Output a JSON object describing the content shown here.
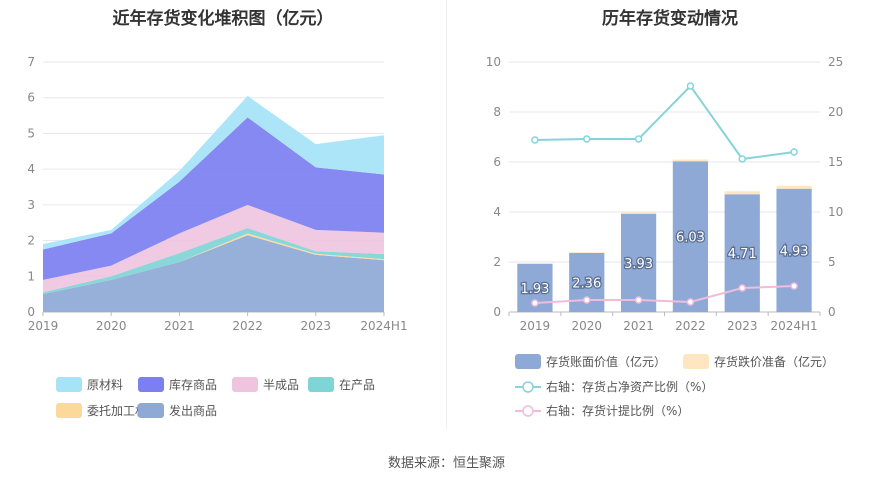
{
  "source": "数据来源：恒生聚源",
  "chart_data": [
    {
      "type": "area",
      "title": "近年存货变化堆积图（亿元）",
      "x": [
        "2019",
        "2020",
        "2021",
        "2022",
        "2023",
        "2024H1"
      ],
      "ylim": [
        0,
        7
      ],
      "yticks": [
        0,
        1,
        2,
        3,
        4,
        5,
        6,
        7
      ],
      "stacked": true,
      "grid": true,
      "legend_position": "bottom",
      "series": [
        {
          "name": "发出商品",
          "color": "#8ea9d6",
          "values": [
            0.5,
            0.9,
            1.4,
            2.15,
            1.6,
            1.45
          ]
        },
        {
          "name": "委托加工材料",
          "color": "#fcd89a",
          "values": [
            0.0,
            0.0,
            0.0,
            0.05,
            0.03,
            0.03
          ]
        },
        {
          "name": "在产品",
          "color": "#7fd4d6",
          "values": [
            0.05,
            0.1,
            0.25,
            0.15,
            0.07,
            0.14
          ]
        },
        {
          "name": "半成品",
          "color": "#efc4df",
          "values": [
            0.35,
            0.3,
            0.55,
            0.65,
            0.6,
            0.6
          ]
        },
        {
          "name": "库存商品",
          "color": "#7b7ff0",
          "values": [
            0.85,
            0.9,
            1.45,
            2.45,
            1.75,
            1.63
          ]
        },
        {
          "name": "原材料",
          "color": "#a6e3f7",
          "values": [
            0.15,
            0.1,
            0.3,
            0.6,
            0.65,
            1.1
          ]
        }
      ],
      "legend_order": [
        "原材料",
        "库存商品",
        "半成品",
        "在产品",
        "委托加工材料",
        "发出商品"
      ]
    },
    {
      "type": "bar",
      "title": "历年存货变动情况",
      "categories": [
        "2019",
        "2020",
        "2021",
        "2022",
        "2023",
        "2024H1"
      ],
      "ylim": [
        0,
        10
      ],
      "yticks": [
        0,
        2,
        4,
        6,
        8,
        10
      ],
      "y2lim": [
        0,
        25
      ],
      "y2ticks": [
        0,
        5,
        10,
        15,
        20,
        25
      ],
      "grid": true,
      "legend_position": "bottom",
      "series": [
        {
          "name": "存货账面价值（亿元）",
          "axis": "left",
          "kind": "bar",
          "color": "#8ea9d6",
          "values": [
            1.93,
            2.36,
            3.93,
            6.03,
            4.71,
            4.93
          ],
          "labels": [
            "1.93",
            "2.36",
            "3.93",
            "6.03",
            "4.71",
            "4.93"
          ]
        },
        {
          "name": "存货跌价准备（亿元）",
          "axis": "left",
          "kind": "bar-stack",
          "color": "#fde6c0",
          "values": [
            0.02,
            0.03,
            0.06,
            0.07,
            0.12,
            0.12
          ]
        },
        {
          "name": "右轴：存货占净资产比例（%）",
          "axis": "right",
          "kind": "line",
          "color": "#87d3db",
          "values": [
            17.2,
            17.3,
            17.3,
            22.6,
            15.3,
            16.0
          ]
        },
        {
          "name": "右轴：存货计提比例（%）",
          "axis": "right",
          "kind": "line",
          "color": "#efbddb",
          "values": [
            0.9,
            1.2,
            1.2,
            1.0,
            2.4,
            2.6
          ]
        }
      ]
    }
  ]
}
